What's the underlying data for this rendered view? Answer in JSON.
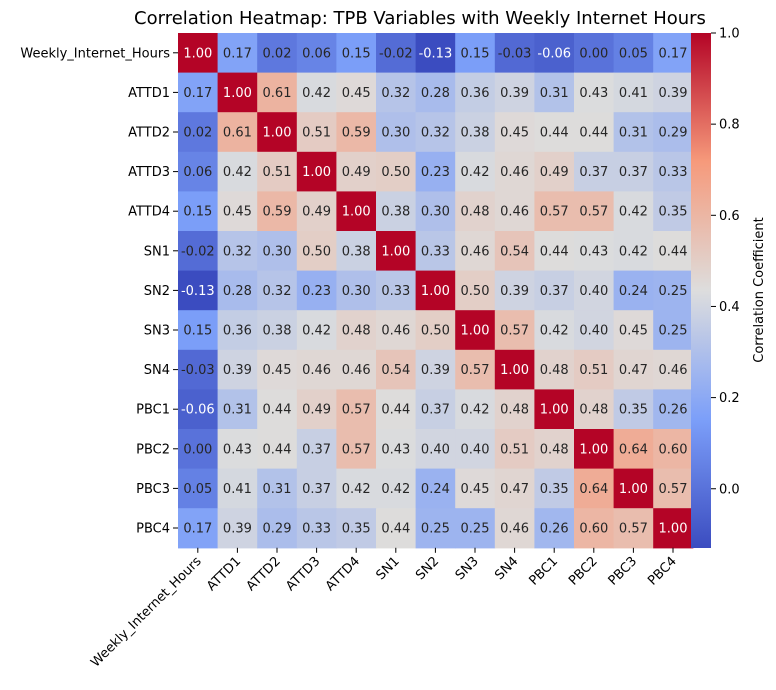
{
  "chart_data": {
    "type": "heatmap",
    "title": "Correlation Heatmap: TPB Variables with Weekly Internet Hours",
    "xlabel": "",
    "ylabel": "",
    "labels": [
      "Weekly_Internet_Hours",
      "ATTD1",
      "ATTD2",
      "ATTD3",
      "ATTD4",
      "SN1",
      "SN2",
      "SN3",
      "SN4",
      "PBC1",
      "PBC2",
      "PBC3",
      "PBC4"
    ],
    "values": [
      [
        1.0,
        0.17,
        0.02,
        0.06,
        0.15,
        -0.02,
        -0.13,
        0.15,
        -0.03,
        -0.06,
        0.0,
        0.05,
        0.17
      ],
      [
        0.17,
        1.0,
        0.61,
        0.42,
        0.45,
        0.32,
        0.28,
        0.36,
        0.39,
        0.31,
        0.43,
        0.41,
        0.39
      ],
      [
        0.02,
        0.61,
        1.0,
        0.51,
        0.59,
        0.3,
        0.32,
        0.38,
        0.45,
        0.44,
        0.44,
        0.31,
        0.29
      ],
      [
        0.06,
        0.42,
        0.51,
        1.0,
        0.49,
        0.5,
        0.23,
        0.42,
        0.46,
        0.49,
        0.37,
        0.37,
        0.33
      ],
      [
        0.15,
        0.45,
        0.59,
        0.49,
        1.0,
        0.38,
        0.3,
        0.48,
        0.46,
        0.57,
        0.57,
        0.42,
        0.35
      ],
      [
        -0.02,
        0.32,
        0.3,
        0.5,
        0.38,
        1.0,
        0.33,
        0.46,
        0.54,
        0.44,
        0.43,
        0.42,
        0.44
      ],
      [
        -0.13,
        0.28,
        0.32,
        0.23,
        0.3,
        0.33,
        1.0,
        0.5,
        0.39,
        0.37,
        0.4,
        0.24,
        0.25
      ],
      [
        0.15,
        0.36,
        0.38,
        0.42,
        0.48,
        0.46,
        0.5,
        1.0,
        0.57,
        0.42,
        0.4,
        0.45,
        0.25
      ],
      [
        -0.03,
        0.39,
        0.45,
        0.46,
        0.46,
        0.54,
        0.39,
        0.57,
        1.0,
        0.48,
        0.51,
        0.47,
        0.46
      ],
      [
        -0.06,
        0.31,
        0.44,
        0.49,
        0.57,
        0.44,
        0.37,
        0.42,
        0.48,
        1.0,
        0.48,
        0.35,
        0.26
      ],
      [
        0.0,
        0.43,
        0.44,
        0.37,
        0.57,
        0.43,
        0.4,
        0.4,
        0.51,
        0.48,
        1.0,
        0.64,
        0.6
      ],
      [
        0.05,
        0.41,
        0.31,
        0.37,
        0.42,
        0.42,
        0.24,
        0.45,
        0.47,
        0.35,
        0.64,
        1.0,
        0.57
      ],
      [
        0.17,
        0.39,
        0.29,
        0.33,
        0.35,
        0.44,
        0.25,
        0.25,
        0.46,
        0.26,
        0.6,
        0.57,
        1.0
      ]
    ],
    "value_format": "2 decimals",
    "colormap": "coolwarm",
    "vmin": -0.13,
    "vmax": 1.0,
    "colorbar": {
      "label": "Correlation Coefficient",
      "ticks": [
        0.0,
        0.2,
        0.4,
        0.6,
        0.8,
        1.0
      ],
      "tick_labels": [
        "0.0",
        "0.2",
        "0.4",
        "0.6",
        "0.8",
        "1.0"
      ]
    },
    "grid": false,
    "legend": "colorbar right"
  }
}
